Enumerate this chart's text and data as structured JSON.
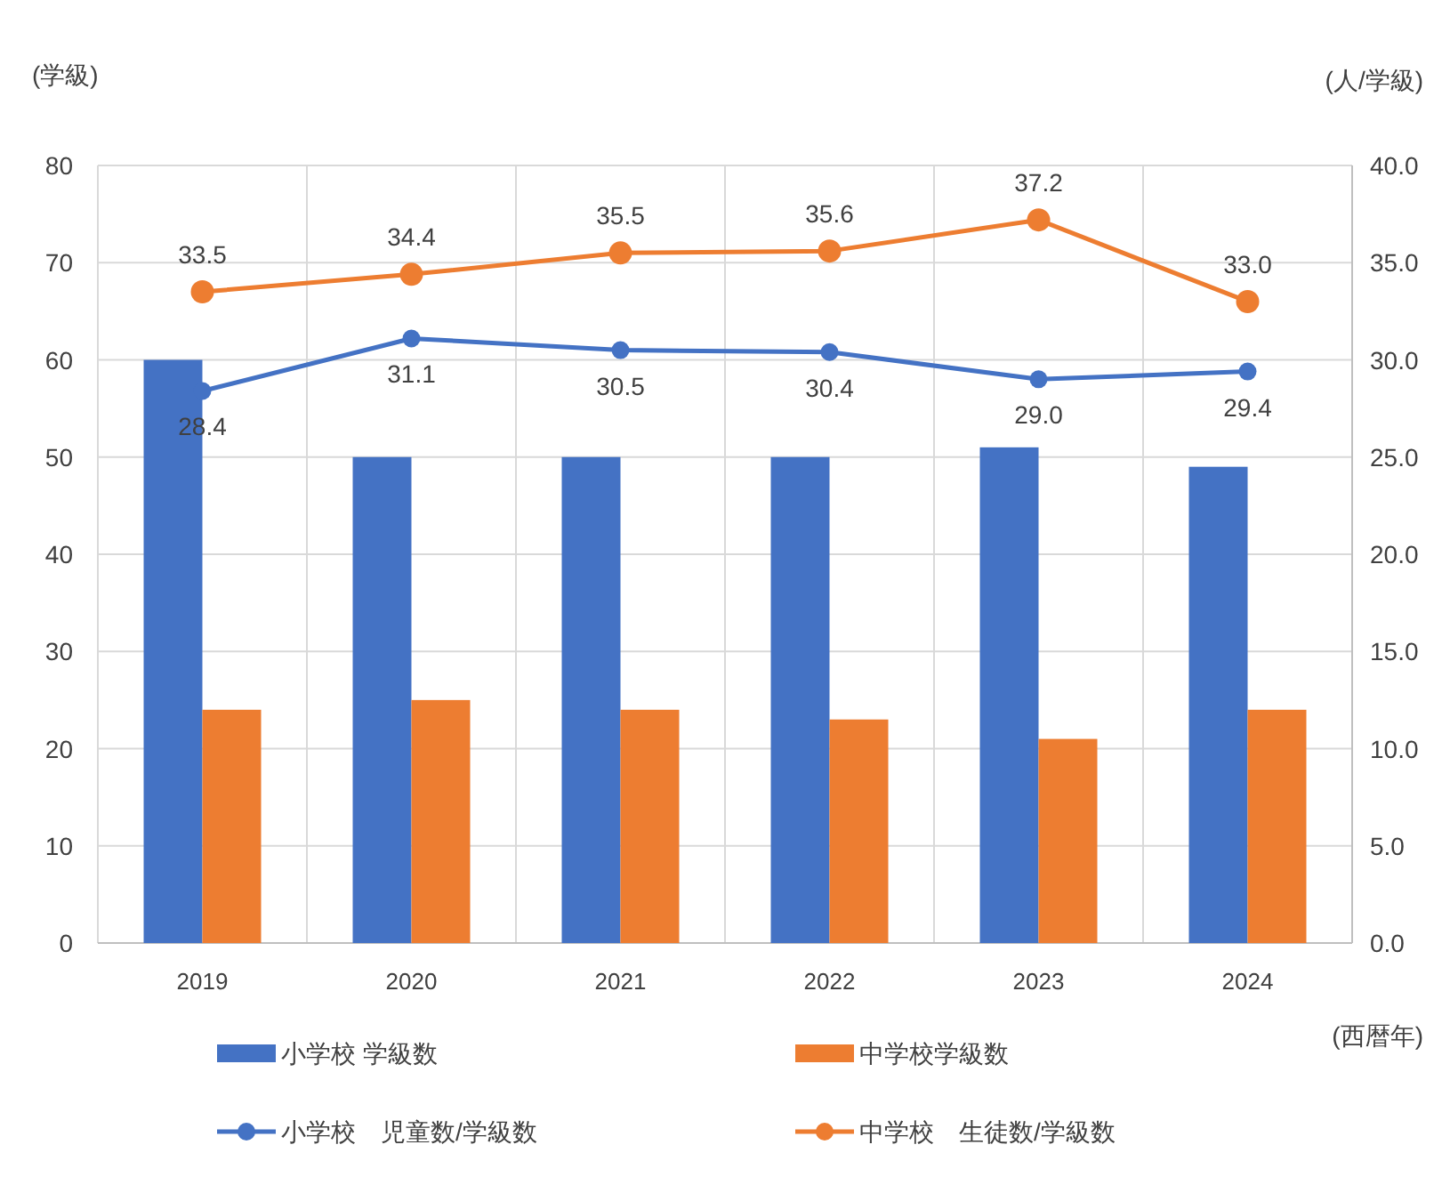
{
  "chart_data": {
    "type": "bar",
    "xlabel": "(西暦年)",
    "ylabel": "(学級)",
    "y2label": "(人/学級)",
    "categories": [
      "2019",
      "2020",
      "2021",
      "2022",
      "2023",
      "2024"
    ],
    "series": [
      {
        "name": "小学校 学級数",
        "color": "#4472c4",
        "values": [
          60,
          50,
          50,
          50,
          51,
          49
        ]
      },
      {
        "name": "中学校学級数",
        "color": "#ed7d31",
        "values": [
          24,
          25,
          24,
          23,
          21,
          24
        ]
      },
      {
        "name": "小学校　児童数/学級数",
        "type": "line",
        "axis": "y2",
        "color": "#4472c4",
        "values": [
          28.4,
          31.1,
          30.5,
          30.4,
          29.0,
          29.4
        ],
        "value_labels": [
          "28.4",
          "31.1",
          "30.5",
          "30.4",
          "29.0",
          "29.4"
        ]
      },
      {
        "name": "中学校　生徒数/学級数",
        "type": "line",
        "axis": "y2",
        "color": "#ed7d31",
        "values": [
          33.5,
          34.4,
          35.5,
          35.6,
          37.2,
          33.0
        ],
        "value_labels": [
          "33.5",
          "34.4",
          "35.5",
          "35.6",
          "37.2",
          "33.0"
        ]
      }
    ],
    "ylim": [
      0,
      80
    ],
    "yticks": [
      0,
      10,
      20,
      30,
      40,
      50,
      60,
      70,
      80
    ],
    "y2lim": [
      0,
      40
    ],
    "y2ticks": [
      {
        "value": 0,
        "label": "0.0"
      },
      {
        "value": 5,
        "label": "5.0"
      },
      {
        "value": 10,
        "label": "10.0"
      },
      {
        "value": 15,
        "label": "15.0"
      },
      {
        "value": 20,
        "label": "20.0"
      },
      {
        "value": 25,
        "label": "25.0"
      },
      {
        "value": 30,
        "label": "30.0"
      },
      {
        "value": 35,
        "label": "35.0"
      },
      {
        "value": 40,
        "label": "40.0"
      }
    ],
    "grid": true,
    "legend": "bottom",
    "marker": "circle"
  }
}
